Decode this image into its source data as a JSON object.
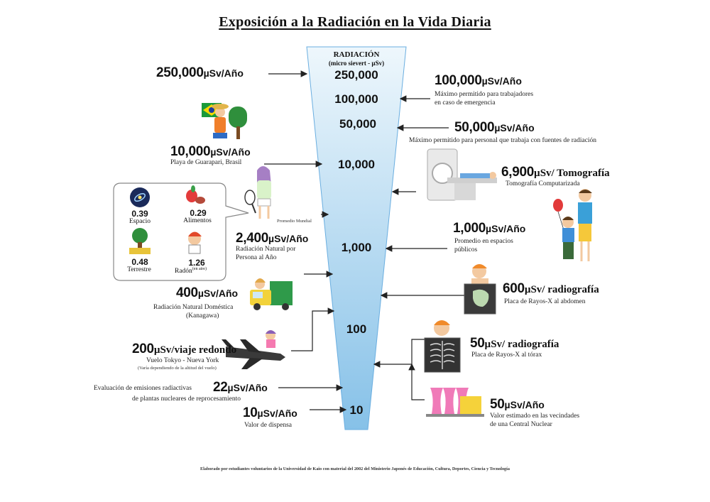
{
  "title": "Exposición a la Radiación en la Vida Diaria",
  "unit": "µSv/Año",
  "unit_short": "µSv",
  "funnel": {
    "header": "RADIACIÓN",
    "subheader": "(micro sievert - µSv)",
    "scale_labels": [
      "250,000",
      "100,000",
      "50,000",
      "10,000",
      "1,000",
      "100",
      "10"
    ]
  },
  "left_items": [
    {
      "value": "250,000",
      "desc": ""
    },
    {
      "value": "10,000",
      "desc": "Playa de Guarapari, Brasil"
    },
    {
      "value": "2,400",
      "desc_lines": [
        "Radiación Natural por",
        "Persona al Año"
      ],
      "note": "Promedio Mundial"
    },
    {
      "value": "400",
      "desc_lines": [
        "Radiación Natural Doméstica",
        "(Kanagawa)"
      ]
    },
    {
      "value": "200",
      "suffix": "µSv/viaje redondo",
      "desc": "Vuelo Tokyo - Nueva York",
      "note": "(Varía dependiendo de la altitud del vuelo)"
    },
    {
      "value": "22",
      "desc_lines": [
        "Evaluación de emisiones radiactivas",
        "de plantas nucleares de reprocesamiento"
      ]
    },
    {
      "value": "10",
      "desc": "Valor de dispensa"
    }
  ],
  "right_items": [
    {
      "value": "100,000",
      "desc_lines": [
        "Máximo permitido para trabajadores",
        "en caso de emergencia"
      ]
    },
    {
      "value": "50,000",
      "desc": "Máximo permitido para personal que trabaja con fuentes de radiación"
    },
    {
      "value": "6,900",
      "suffix": "µSv/ Tomografía",
      "desc": "Tomografía Computarizada"
    },
    {
      "value": "1,000",
      "desc_lines": [
        "Promedio en espacios",
        "públicos"
      ]
    },
    {
      "value": "600",
      "suffix": "µSv/ radiografía",
      "desc": "Placa de Rayos-X al abdomen"
    },
    {
      "value": "50",
      "suffix": "µSv/ radiografía",
      "desc": "Placa de Rayos-X al tórax"
    },
    {
      "value": "50",
      "desc_lines": [
        "Valor estimado en las vecindades",
        "de una Central Nuclear"
      ]
    }
  ],
  "breakdown": [
    {
      "value": "0.39",
      "label": "Espacio",
      "icon": "galaxy-icon"
    },
    {
      "value": "0.29",
      "label": "Alimentos",
      "icon": "food-icon"
    },
    {
      "value": "0.48",
      "label": "Terrestre",
      "icon": "tree-icon"
    },
    {
      "value": "1.26",
      "label": "Radón",
      "label_sup": "(en aire)",
      "icon": "radon-person-icon"
    }
  ],
  "footer": "Elaborado por estudiantes voluntarios de la Universidad de Kaio con material del 2002 del Ministerio Japonés de Educación, Cultura, Deportes, Ciencia y Tecnología",
  "colors": {
    "funnel_top": "#e8f4fb",
    "funnel_bottom": "#8fc5ea",
    "arrow": "#222222"
  }
}
